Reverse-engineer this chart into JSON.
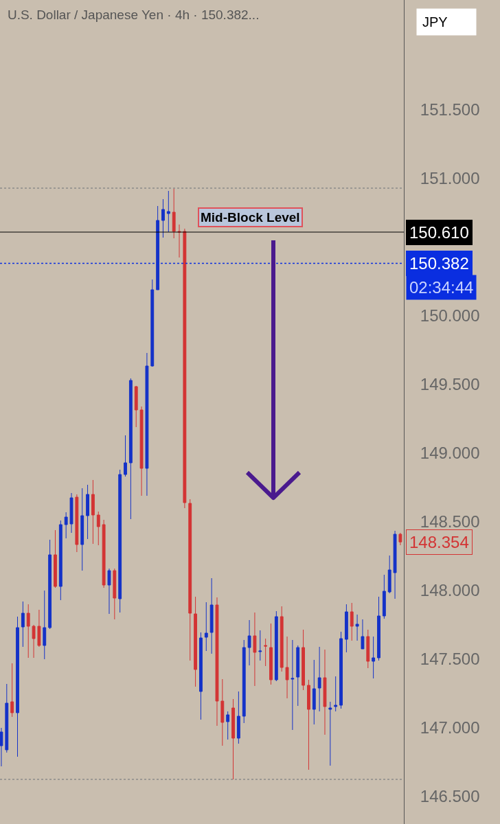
{
  "chart_data": {
    "type": "candlestick",
    "title": "U.S. Dollar / Japanese Yen · 4h · 150.382...",
    "categories": [
      null,
      null,
      null,
      null,
      null,
      null,
      null,
      null,
      null,
      null,
      null,
      null,
      null,
      null,
      null,
      null,
      null,
      null,
      null,
      null,
      null,
      null,
      null,
      null,
      null,
      null,
      null,
      null,
      null,
      null,
      null,
      null,
      null,
      null,
      null,
      null,
      null,
      null,
      null,
      null,
      null,
      null,
      null,
      null,
      null,
      null,
      null,
      null,
      null,
      null,
      null,
      null,
      null,
      null,
      null,
      null,
      null,
      null,
      null,
      null,
      null,
      null,
      null,
      null,
      null,
      null,
      null,
      null,
      null,
      null,
      null,
      null,
      null,
      null,
      null
    ],
    "ohlc": [
      [
        146.87,
        147.0,
        146.72,
        146.97
      ],
      [
        146.84,
        147.32,
        146.82,
        147.18
      ],
      [
        147.19,
        147.47,
        147.08,
        147.11
      ],
      [
        147.11,
        147.81,
        146.79,
        147.73
      ],
      [
        147.735,
        147.92,
        147.59,
        147.835
      ],
      [
        147.835,
        147.9,
        147.51,
        147.74
      ],
      [
        147.74,
        147.75,
        147.51,
        147.65
      ],
      [
        147.74,
        147.86,
        147.59,
        147.6
      ],
      [
        147.6,
        148.0,
        147.5,
        147.73
      ],
      [
        147.73,
        148.37,
        147.72,
        148.26
      ],
      [
        148.26,
        148.44,
        148.02,
        148.03
      ],
      [
        148.03,
        148.51,
        147.93,
        148.48
      ],
      [
        148.48,
        148.57,
        148.38,
        148.535
      ],
      [
        148.485,
        148.71,
        148.42,
        148.675
      ],
      [
        148.68,
        148.7,
        148.28,
        148.335
      ],
      [
        148.335,
        148.745,
        148.145,
        148.545
      ],
      [
        148.545,
        148.77,
        148.375,
        148.7
      ],
      [
        148.7,
        148.805,
        148.34,
        148.55
      ],
      [
        148.55,
        148.575,
        148.33,
        148.465
      ],
      [
        148.48,
        148.515,
        148.02,
        148.04
      ],
      [
        148.04,
        148.16,
        147.83,
        148.145
      ],
      [
        148.145,
        148.16,
        147.79,
        147.945
      ],
      [
        147.94,
        148.88,
        147.84,
        148.845
      ],
      [
        148.845,
        149.13,
        148.83,
        148.93
      ],
      [
        148.93,
        149.545,
        148.52,
        149.53
      ],
      [
        149.485,
        149.49,
        149.19,
        149.315
      ],
      [
        149.315,
        149.34,
        148.69,
        148.89
      ],
      [
        148.89,
        149.73,
        148.69,
        149.635
      ],
      [
        149.635,
        150.265,
        149.63,
        150.19
      ],
      [
        150.19,
        150.8,
        150.19,
        150.695
      ],
      [
        150.695,
        150.85,
        150.57,
        150.775
      ],
      [
        150.745,
        150.91,
        150.61,
        150.76
      ],
      [
        150.755,
        150.925,
        150.565,
        150.615
      ],
      [
        150.615,
        150.665,
        150.425,
        150.61
      ],
      [
        150.615,
        150.635,
        148.6,
        148.64
      ],
      [
        148.635,
        148.665,
        147.49,
        147.835
      ],
      [
        147.83,
        147.955,
        147.3,
        147.425
      ],
      [
        147.265,
        147.695,
        147.06,
        147.655
      ],
      [
        147.66,
        147.915,
        147.56,
        147.69
      ],
      [
        147.695,
        148.09,
        147.54,
        147.895
      ],
      [
        147.895,
        147.95,
        147.015,
        147.195
      ],
      [
        147.195,
        147.355,
        146.87,
        147.04
      ],
      [
        147.045,
        147.12,
        146.915,
        147.095
      ],
      [
        147.145,
        147.21,
        146.625,
        146.925
      ],
      [
        146.925,
        147.265,
        146.885,
        147.085
      ],
      [
        147.085,
        147.64,
        147.035,
        147.585
      ],
      [
        147.585,
        147.785,
        147.455,
        147.67
      ],
      [
        147.67,
        147.84,
        147.305,
        147.55
      ],
      [
        147.555,
        147.71,
        147.49,
        147.56
      ],
      [
        147.6,
        147.65,
        147.45,
        147.595
      ],
      [
        147.585,
        147.76,
        147.315,
        147.35
      ],
      [
        147.35,
        147.85,
        147.34,
        147.81
      ],
      [
        147.81,
        147.885,
        147.41,
        147.44
      ],
      [
        147.44,
        147.665,
        147.215,
        147.35
      ],
      [
        147.355,
        147.64,
        146.985,
        147.36
      ],
      [
        147.37,
        147.6,
        147.16,
        147.585
      ],
      [
        147.585,
        147.715,
        147.275,
        147.31
      ],
      [
        147.31,
        147.35,
        146.695,
        147.135
      ],
      [
        147.135,
        147.495,
        147.025,
        147.285
      ],
      [
        147.29,
        147.59,
        147.12,
        147.365
      ],
      [
        147.365,
        147.57,
        146.95,
        147.155
      ],
      [
        147.135,
        147.19,
        146.725,
        147.145
      ],
      [
        147.155,
        147.375,
        147.12,
        147.165
      ],
      [
        147.165,
        147.7,
        147.14,
        147.65
      ],
      [
        147.645,
        147.9,
        147.55,
        147.845
      ],
      [
        147.845,
        147.91,
        147.635,
        147.74
      ],
      [
        147.74,
        147.825,
        147.635,
        147.755
      ],
      [
        147.575,
        147.79,
        147.575,
        147.665
      ],
      [
        147.665,
        147.715,
        147.435,
        147.485
      ],
      [
        147.485,
        147.665,
        147.36,
        147.51
      ],
      [
        147.51,
        147.955,
        147.49,
        147.815
      ],
      [
        147.815,
        148.115,
        147.795,
        147.995
      ],
      [
        147.99,
        148.255,
        147.98,
        148.15
      ],
      [
        148.13,
        148.435,
        147.94,
        148.41
      ],
      [
        148.41,
        148.42,
        148.33,
        148.354
      ]
    ],
    "colors": [
      "#1432c8",
      "#1432c8",
      "#d33434",
      "#1432c8",
      "#1432c8",
      "#d33434",
      "#d33434",
      "#d33434",
      "#1432c8",
      "#1432c8",
      "#d33434",
      "#1432c8",
      "#1432c8",
      "#1432c8",
      "#d33434",
      "#1432c8",
      "#1432c8",
      "#d33434",
      "#d33434",
      "#d33434",
      "#1432c8",
      "#d33434",
      "#1432c8",
      "#1432c8",
      "#1432c8",
      "#d33434",
      "#d33434",
      "#1432c8",
      "#1432c8",
      "#1432c8",
      "#1432c8",
      "#1432c8",
      "#d33434",
      "#d33434",
      "#d33434",
      "#d33434",
      "#d33434",
      "#1432c8",
      "#1432c8",
      "#1432c8",
      "#d33434",
      "#d33434",
      "#1432c8",
      "#d33434",
      "#1432c8",
      "#1432c8",
      "#1432c8",
      "#d33434",
      "#1432c8",
      "#d33434",
      "#d33434",
      "#1432c8",
      "#d33434",
      "#d33434",
      "#1432c8",
      "#1432c8",
      "#d33434",
      "#d33434",
      "#1432c8",
      "#1432c8",
      "#d33434",
      "#1432c8",
      "#1432c8",
      "#1432c8",
      "#1432c8",
      "#d33434",
      "#1432c8",
      "#1432c8",
      "#d33434",
      "#1432c8",
      "#1432c8",
      "#1432c8",
      "#1432c8",
      "#1432c8",
      "#d33434"
    ],
    "ylim": [
      146.3,
      152.3
    ],
    "yticks": [
      {
        "value": 146.5,
        "label": "146.500"
      },
      {
        "value": 147,
        "label": "147.000"
      },
      {
        "value": 147.5,
        "label": "147.500"
      },
      {
        "value": 148,
        "label": "148.000"
      },
      {
        "value": 148.5,
        "label": "148.500"
      },
      {
        "value": 149,
        "label": "149.000"
      },
      {
        "value": 149.5,
        "label": "149.500"
      },
      {
        "value": 150,
        "label": "150.000"
      },
      {
        "value": 151,
        "label": "151.000"
      },
      {
        "value": 151.5,
        "label": "151.500"
      }
    ],
    "tick_labels": "y",
    "ref_lines": [
      {
        "axis": "y",
        "value": 150.61,
        "label": "150.610",
        "color": "#000000",
        "line_style": "solid"
      },
      {
        "axis": "y",
        "value": 150.382,
        "label": "150.382",
        "color": "#0a2ee0",
        "line_style": "dotted"
      },
      {
        "axis": "y",
        "value": 150.93,
        "color": "#8a8a8a",
        "line_style": "dotted"
      },
      {
        "axis": "y",
        "value": 146.625,
        "color": "#8a8a8a",
        "line_style": "dotted"
      }
    ],
    "annotations": [
      "Mid-Block Level",
      "02:34:44",
      "JPY",
      "148.354"
    ]
  }
}
